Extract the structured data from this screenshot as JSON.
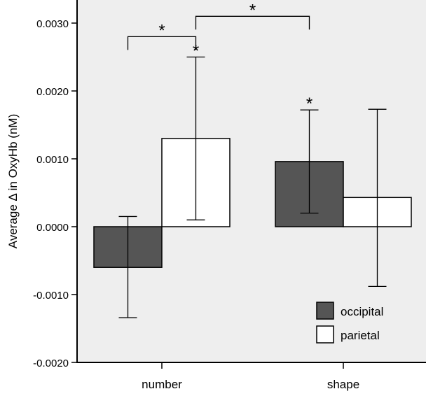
{
  "chart_data": {
    "type": "bar",
    "ylabel": "Average Δ in OxyHb (nM)",
    "ylim": [
      -0.002,
      0.0031
    ],
    "yticks": [
      -0.002,
      -0.001,
      0.0,
      0.001,
      0.002,
      0.003
    ],
    "ytick_labels": [
      "-0.0020",
      "-0.0010",
      "0.0000",
      "0.0010",
      "0.0020",
      "0.0030"
    ],
    "categories": [
      "number",
      "shape"
    ],
    "series": [
      {
        "name": "occipital",
        "color": "#555555",
        "values": [
          -0.0006,
          0.00096
        ],
        "err_low": [
          -0.00134,
          0.0002
        ],
        "err_high": [
          0.00015,
          0.00172
        ]
      },
      {
        "name": "parietal",
        "color": "#ffffff",
        "values": [
          0.0013,
          0.00043
        ],
        "err_low": [
          0.0001,
          -0.00088
        ],
        "err_high": [
          0.0025,
          0.00173
        ]
      }
    ],
    "legend_position": "bottom-right",
    "background": "#eeeeee",
    "annotations": {
      "star_symbol": "*",
      "bar_stars": [
        {
          "category": 0,
          "series": 1
        },
        {
          "category": 1,
          "series": 0
        }
      ],
      "brackets": [
        {
          "from": {
            "category": 0,
            "series": 0
          },
          "to": {
            "category": 0,
            "series": 1
          },
          "y": 0.0028
        },
        {
          "from": {
            "category": 0,
            "series": 1
          },
          "to": {
            "category": 1,
            "series": 0
          },
          "y": 0.0031
        }
      ]
    }
  }
}
